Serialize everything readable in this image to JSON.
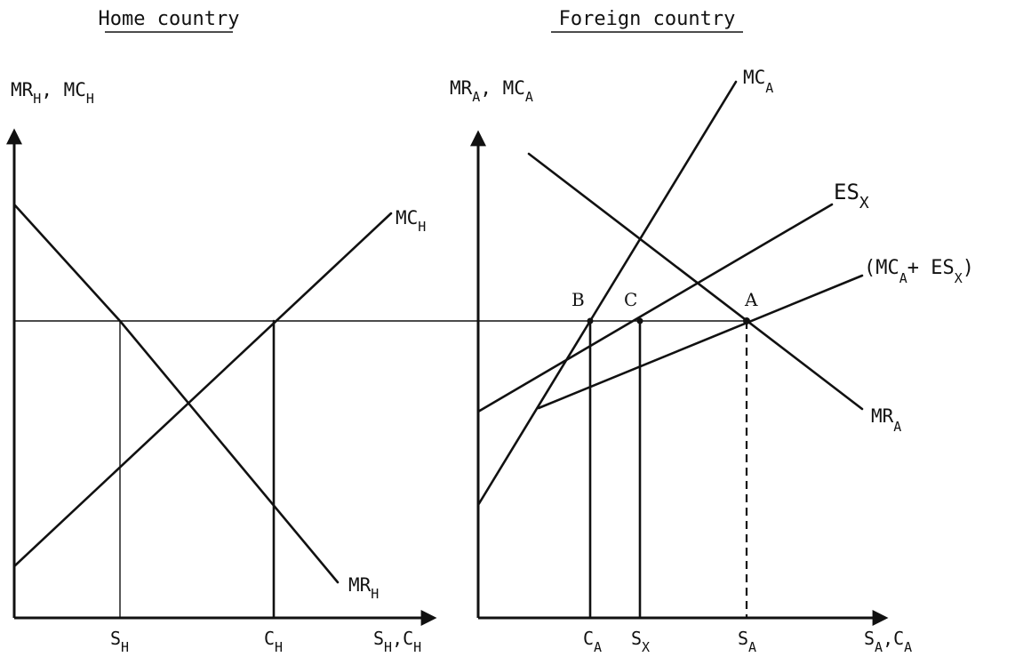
{
  "panels": [
    {
      "title": "Home country",
      "y_axis": {
        "label": "MR",
        "sub": "H",
        "label2": "MC",
        "sub2": "H"
      },
      "x_axis": {
        "label": "S",
        "sub": "H",
        "label2": "C",
        "sub2": "H"
      },
      "curves": [
        {
          "name": "MC",
          "sub": "H"
        },
        {
          "name": "MR",
          "sub": "H"
        }
      ],
      "ticks": [
        {
          "name": "S",
          "sub": "H"
        },
        {
          "name": "C",
          "sub": "H"
        }
      ]
    },
    {
      "title": "Foreign country",
      "y_axis": {
        "label": "MR",
        "sub": "A",
        "label2": "MC",
        "sub2": "A"
      },
      "x_axis": {
        "label": "S",
        "sub": "A",
        "label2": "C",
        "sub2": "A"
      },
      "curves": [
        {
          "name": "MC",
          "sub": "A"
        },
        {
          "name": "ES",
          "sub": "X"
        },
        {
          "name": "(MC",
          "sub": "A",
          "mid": "+ ES",
          "sub2": "X",
          "tail": ")"
        },
        {
          "name": "MR",
          "sub": "A"
        }
      ],
      "points": [
        "B",
        "C",
        "A"
      ],
      "ticks": [
        {
          "name": "C",
          "sub": "A"
        },
        {
          "name": "S",
          "sub": "X"
        },
        {
          "name": "S",
          "sub": "A"
        }
      ]
    }
  ]
}
